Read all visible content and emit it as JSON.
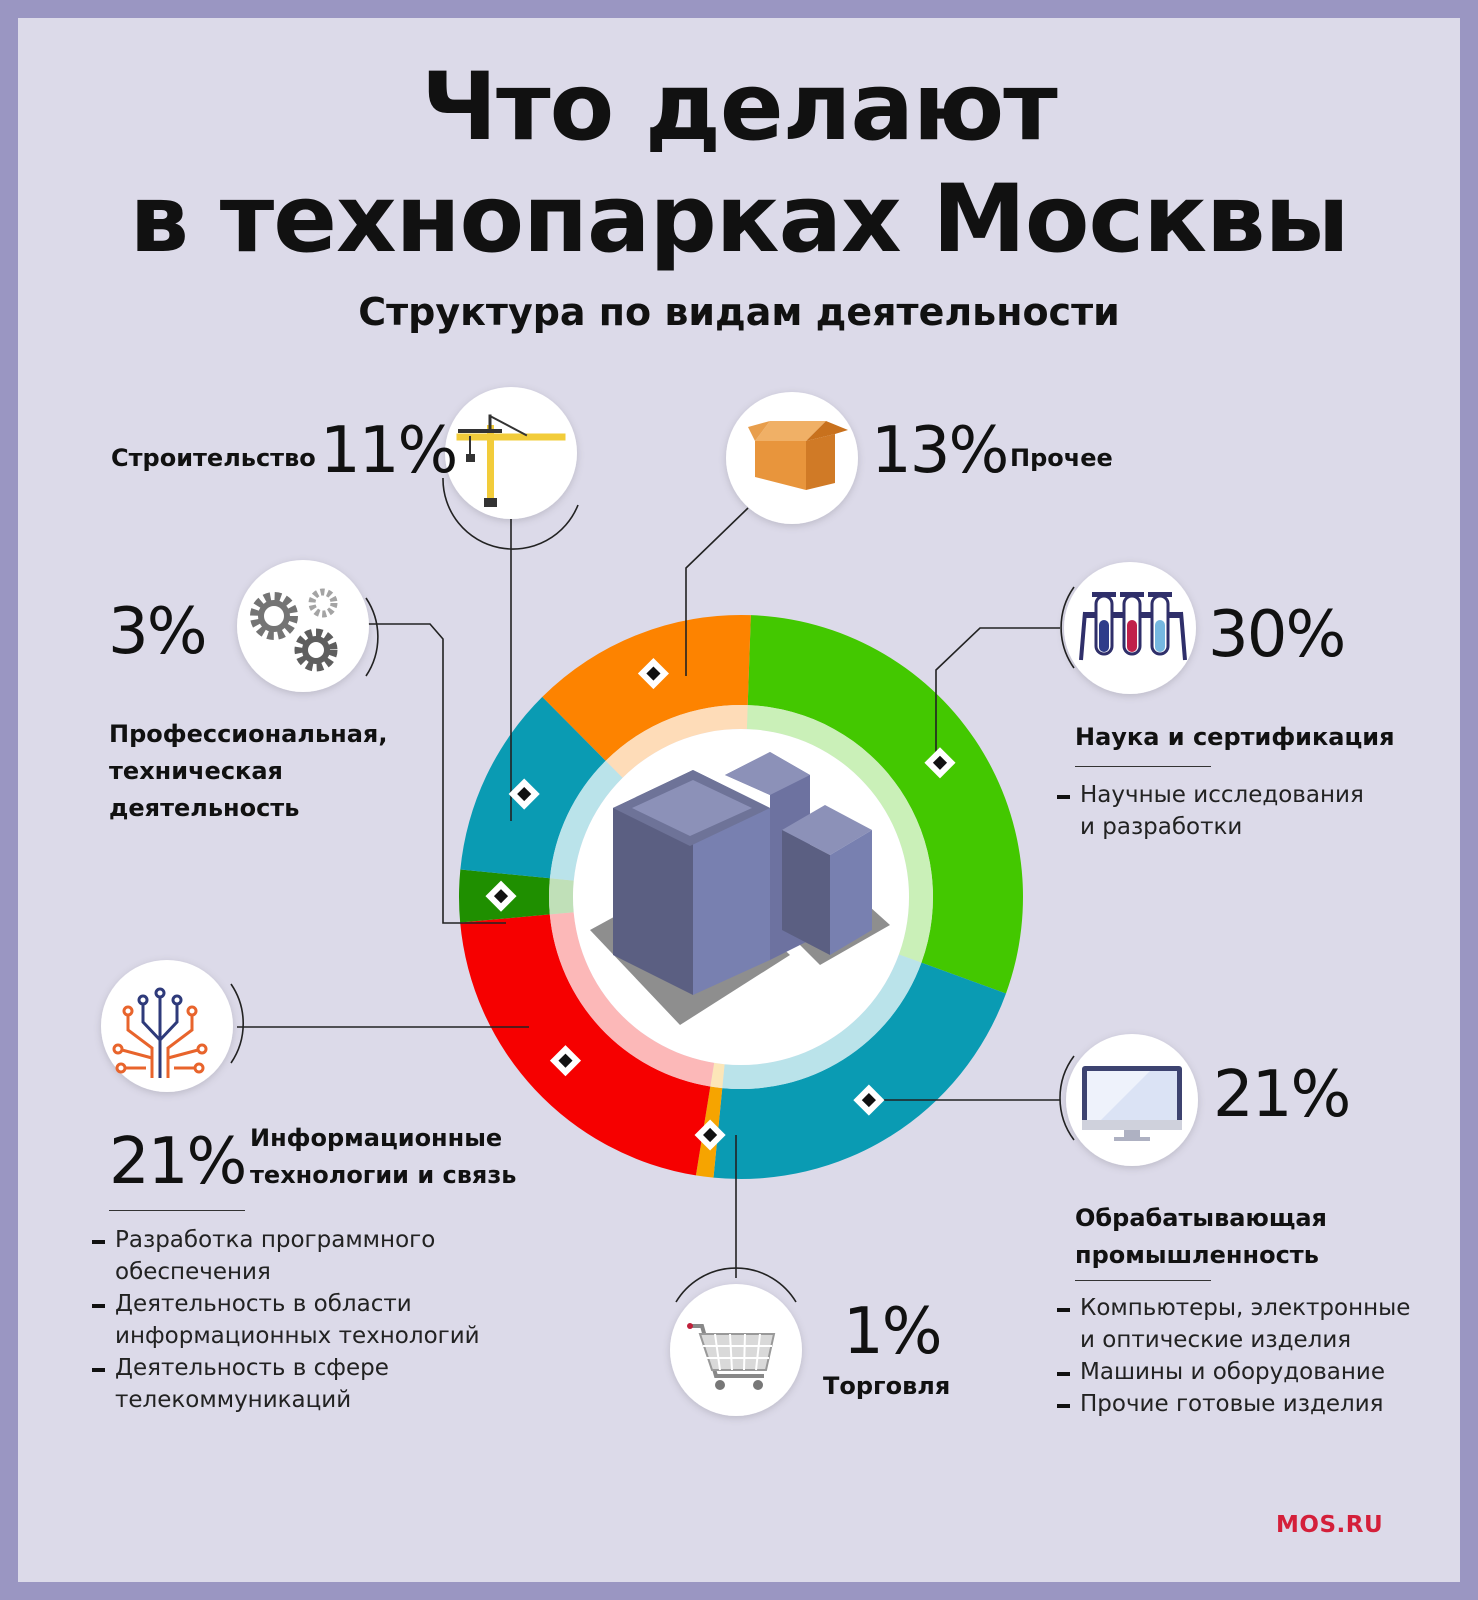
{
  "title_line1": "Что делают",
  "title_line2": "в технопарках Москвы",
  "subtitle": "Структура по видам деятельности",
  "logo": "MOS.RU",
  "colors": {
    "background_frame": "#9a96c2",
    "background": "#dcdae9",
    "science": "#43c800",
    "manufacturing": "#0a9bb3",
    "trade": "#f6a400",
    "it": "#f60000",
    "professional": "#1f8f00",
    "construction": "#0a9bb3",
    "other": "#fd8300",
    "logo": "#d41f3a"
  },
  "chart_data": {
    "type": "pie",
    "style": "donut",
    "title": "Структура по видам деятельности",
    "slices": [
      {
        "label": "Наука и сертификация",
        "value": 30,
        "color": "#43c800"
      },
      {
        "label": "Обрабатывающая промышленность",
        "value": 21,
        "color": "#0a9bb3"
      },
      {
        "label": "Торговля",
        "value": 1,
        "color": "#f6a400"
      },
      {
        "label": "Информационные технологии и связь",
        "value": 21,
        "color": "#f60000"
      },
      {
        "label": "Профессиональная, техническая деятельность",
        "value": 3,
        "color": "#1f8f00"
      },
      {
        "label": "Строительство",
        "value": 11,
        "color": "#0a9bb3"
      },
      {
        "label": "Прочее",
        "value": 13,
        "color": "#fd8300"
      }
    ]
  },
  "sections": {
    "construction": {
      "label": "Строительство",
      "pct": "11%",
      "icon": "crane-icon"
    },
    "other": {
      "label": "Прочее",
      "pct": "13%",
      "icon": "box-icon"
    },
    "professional": {
      "label_lines": [
        "Профессиональная,",
        "техническая",
        "деятельность"
      ],
      "pct": "3%",
      "icon": "gears-icon"
    },
    "science": {
      "label": "Наука и сертификация",
      "pct": "30%",
      "icon": "test-tubes-icon",
      "items": [
        "Научные исследования",
        "и разработки"
      ]
    },
    "it": {
      "label_lines": [
        "Информационные",
        "технологии и связь"
      ],
      "pct": "21%",
      "icon": "circuit-tree-icon",
      "items": [
        "Разработка программного",
        "обеспечения",
        "Деятельность в области",
        "информационных технологий",
        "Деятельность в сфере",
        "телекоммуникаций"
      ]
    },
    "manufacturing": {
      "label_lines": [
        "Обрабатывающая",
        "промышленность"
      ],
      "pct": "21%",
      "icon": "monitor-icon",
      "items": [
        "Компьютеры, электронные",
        "и оптические изделия",
        "Машины и оборудование",
        "Прочие готовые изделия"
      ]
    },
    "trade": {
      "label": "Торговля",
      "pct": "1%",
      "icon": "shopping-cart-icon"
    }
  }
}
